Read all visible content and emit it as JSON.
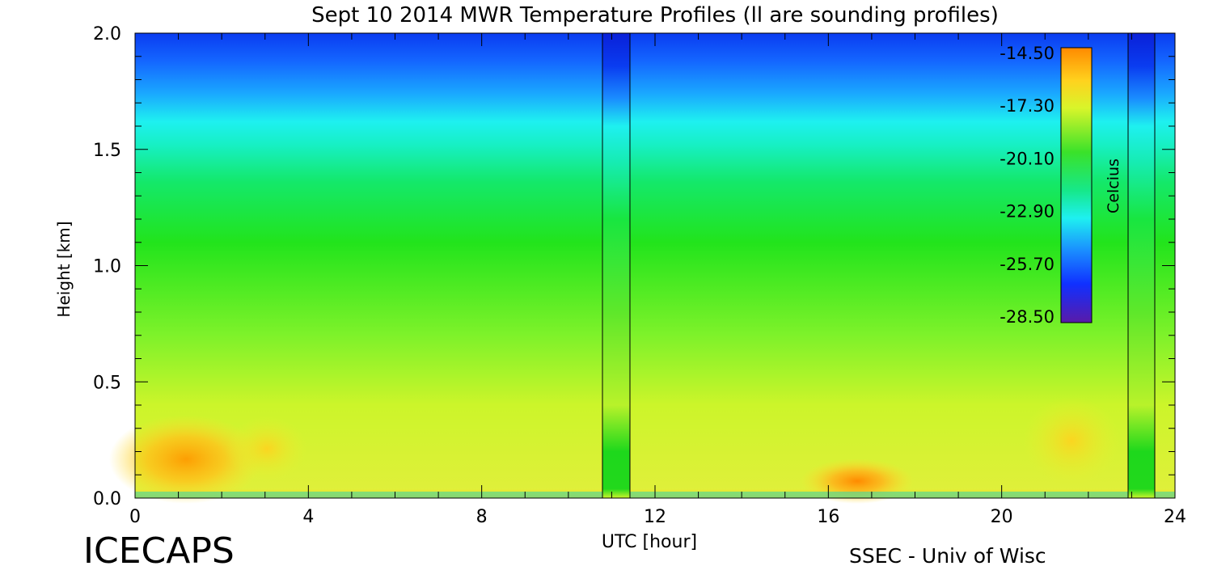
{
  "chart_data": {
    "type": "heatmap",
    "title": "Sept 10 2014 MWR Temperature Profiles (ll are sounding profiles)",
    "xlabel": "UTC [hour]",
    "ylabel": "Height [km]",
    "xlim": [
      0,
      24
    ],
    "ylim": [
      0,
      2.0
    ],
    "x_ticks": [
      "0",
      "4",
      "8",
      "12",
      "16",
      "20",
      "24"
    ],
    "y_ticks": [
      "0.0",
      "0.5",
      "1.0",
      "1.5",
      "2.0"
    ],
    "colorbar": {
      "label": "Celcius",
      "ticks": [
        "-14.50",
        "-17.30",
        "-20.10",
        "-22.90",
        "-25.70",
        "-28.50"
      ],
      "range": [
        -28.5,
        -14.5
      ]
    },
    "sounding_profiles_utc": [
      11.3,
      23.3
    ],
    "annotations": {
      "left_footer": "ICECAPS",
      "right_footer": "SSEC - Univ of Wisc"
    },
    "features": [
      {
        "desc": "warm surface layer",
        "utc_range": [
          0,
          3
        ],
        "height_km": [
          0.05,
          0.35
        ],
        "temp_c": -15.5
      },
      {
        "desc": "warm surface layer",
        "utc_range": [
          16,
          18
        ],
        "height_km": [
          0.0,
          0.15
        ],
        "temp_c": -15.0
      },
      {
        "desc": "cold layer aloft",
        "height_km": [
          1.7,
          2.0
        ],
        "temp_c": -27.5
      }
    ]
  }
}
